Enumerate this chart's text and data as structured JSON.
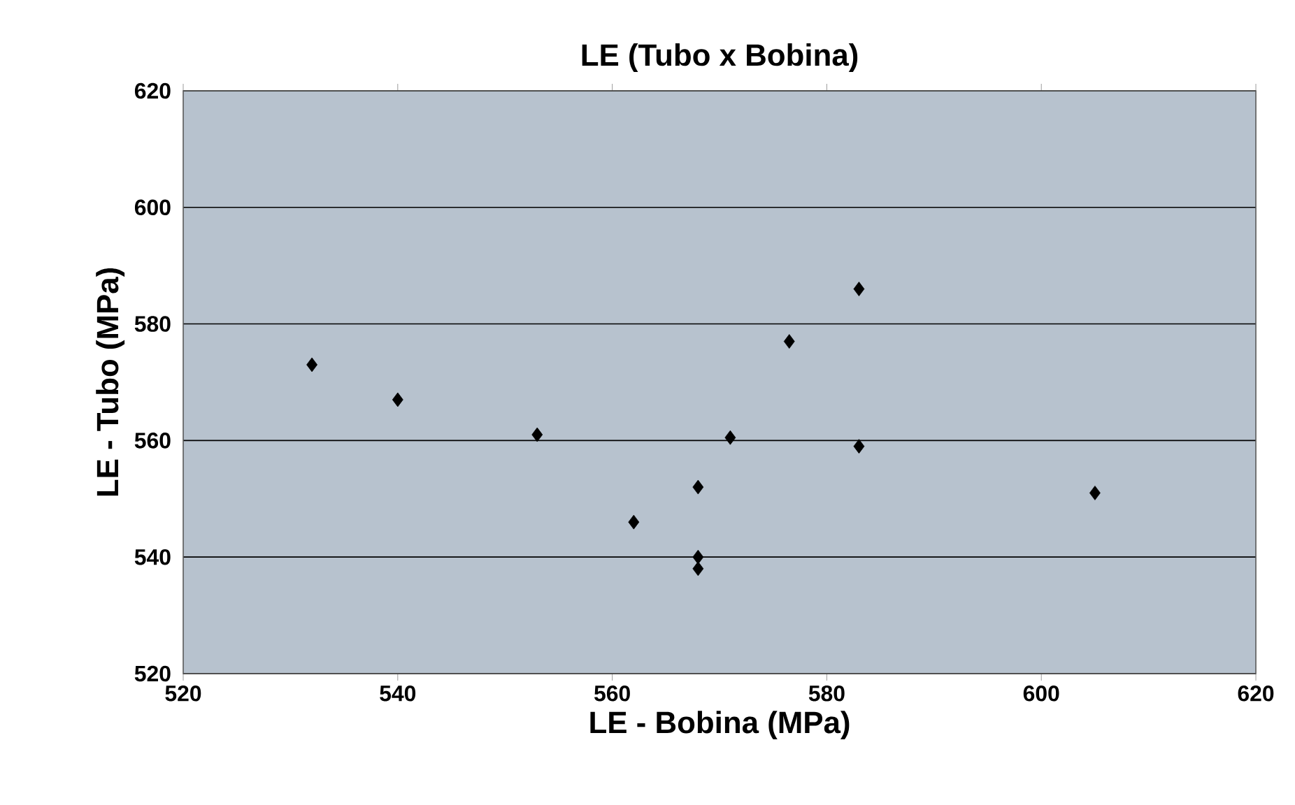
{
  "chart_data": {
    "type": "scatter",
    "title": "LE (Tubo x Bobina)",
    "xlabel": "LE - Bobina (MPa)",
    "ylabel": "LE - Tubo (MPa)",
    "x": [
      532,
      540,
      553,
      562,
      568,
      568,
      568,
      571,
      576.5,
      583,
      583,
      605
    ],
    "values": [
      573,
      567,
      561,
      546,
      552,
      540,
      538,
      560.5,
      577,
      586,
      559,
      551
    ],
    "color": "#000000",
    "marker": "diamond",
    "xlim": [
      520,
      620
    ],
    "ylim": [
      520,
      620
    ],
    "xticks": [
      520,
      540,
      560,
      580,
      600,
      620
    ],
    "yticks": [
      520,
      540,
      560,
      580,
      600,
      620
    ],
    "grid": "y"
  }
}
